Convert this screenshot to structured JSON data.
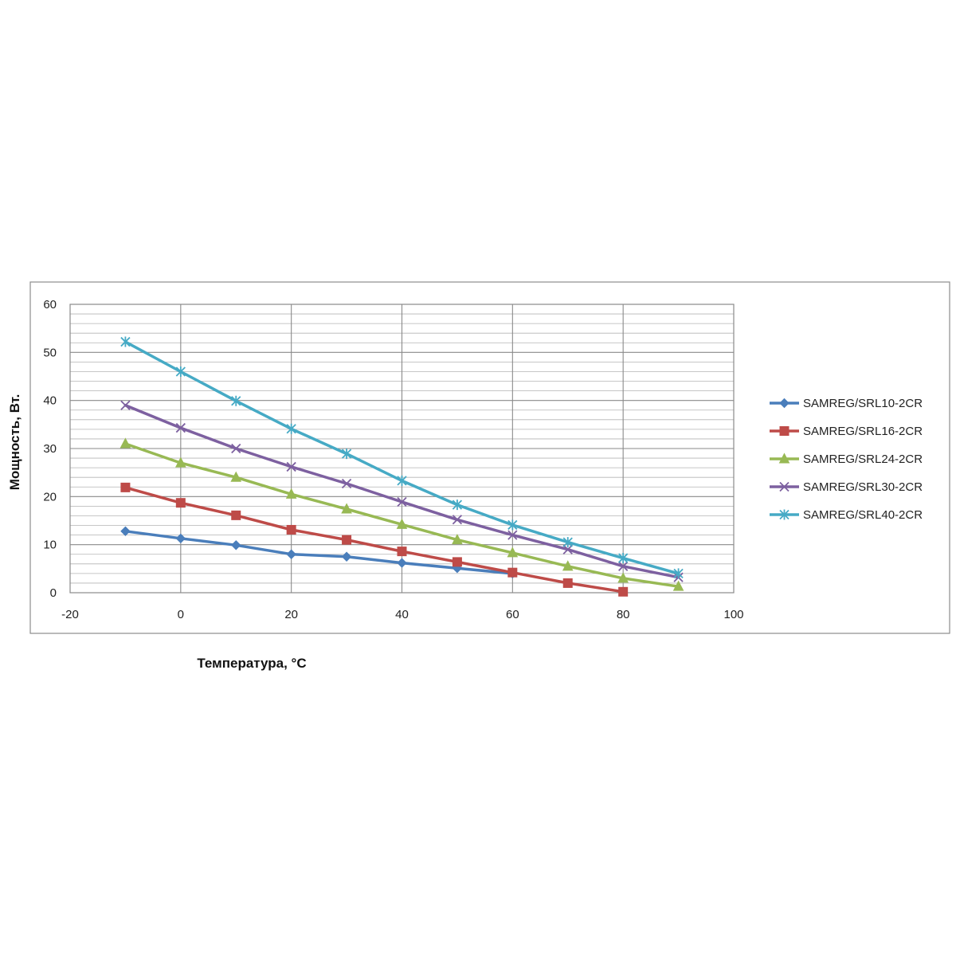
{
  "chart_data": {
    "type": "line",
    "title": "",
    "xlabel": "Температура, °C",
    "ylabel": "Мощность, Вт.",
    "xlim": [
      -20,
      100
    ],
    "ylim": [
      0,
      60
    ],
    "x_ticks": [
      "-20",
      "0",
      "20",
      "40",
      "60",
      "80",
      "100"
    ],
    "y_ticks": [
      "0",
      "10",
      "20",
      "30",
      "40",
      "50",
      "60"
    ],
    "grid": {
      "major_x": true,
      "major_y": true,
      "minor_y_step": 2
    },
    "legend_position": "right",
    "series": [
      {
        "name": "SAMREG/SRL10-2CR",
        "color": "#4a7ebb",
        "marker": "diamond",
        "x": [
          -10,
          0,
          10,
          20,
          30,
          40,
          50,
          60
        ],
        "y": [
          12.8,
          11.3,
          9.9,
          8.0,
          7.5,
          6.2,
          5.1,
          4.0
        ]
      },
      {
        "name": "SAMREG/SRL16-2CR",
        "color": "#be4b48",
        "marker": "square",
        "x": [
          -10,
          0,
          10,
          20,
          30,
          40,
          50,
          60,
          70,
          80
        ],
        "y": [
          21.9,
          18.7,
          16.1,
          13.1,
          11.0,
          8.6,
          6.4,
          4.2,
          2.0,
          0.2
        ]
      },
      {
        "name": "SAMREG/SRL24-2CR",
        "color": "#98b954",
        "marker": "triangle",
        "x": [
          -10,
          0,
          10,
          20,
          30,
          40,
          50,
          60,
          70,
          80,
          90
        ],
        "y": [
          31.0,
          27.0,
          24.0,
          20.5,
          17.4,
          14.2,
          11.0,
          8.3,
          5.5,
          3.0,
          1.3
        ]
      },
      {
        "name": "SAMREG/SRL30-2CR",
        "color": "#7d60a0",
        "marker": "x",
        "x": [
          -10,
          0,
          10,
          20,
          30,
          40,
          50,
          60,
          70,
          80,
          90
        ],
        "y": [
          39.0,
          34.3,
          30.0,
          26.2,
          22.7,
          18.9,
          15.2,
          12.0,
          9.0,
          5.5,
          3.2
        ]
      },
      {
        "name": "SAMREG/SRL40-2CR",
        "color": "#46aac5",
        "marker": "asterisk",
        "x": [
          -10,
          0,
          10,
          20,
          30,
          40,
          50,
          60,
          70,
          80,
          90
        ],
        "y": [
          52.2,
          46.0,
          39.9,
          34.1,
          28.9,
          23.3,
          18.3,
          14.1,
          10.5,
          7.2,
          4.0
        ]
      }
    ]
  }
}
